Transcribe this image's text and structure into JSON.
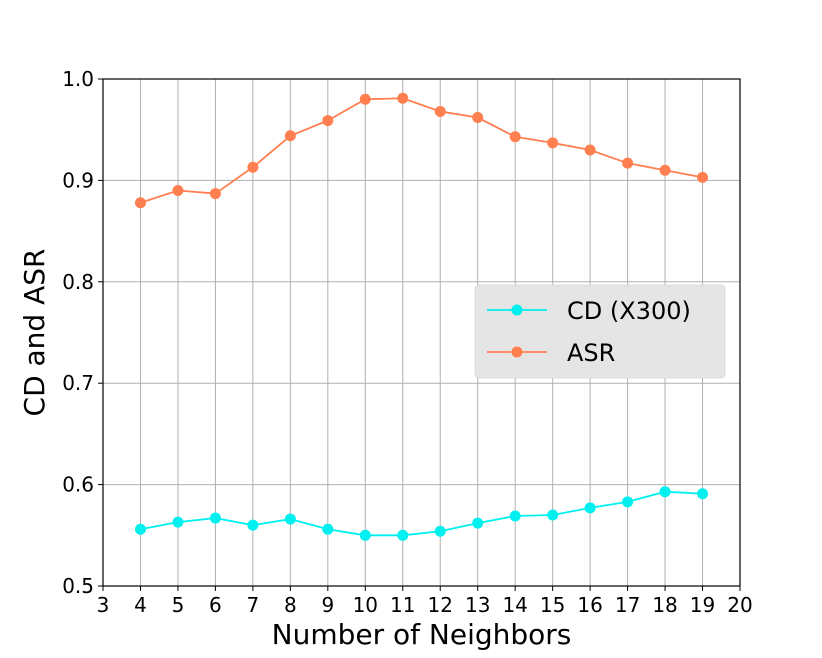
{
  "chart_data": {
    "type": "line",
    "xlabel": "Number of Neighbors",
    "ylabel": "CD and ASR",
    "xlim": [
      3,
      20
    ],
    "ylim": [
      0.5,
      1.0
    ],
    "xticks": [
      "3",
      "4",
      "5",
      "6",
      "7",
      "8",
      "9",
      "10",
      "11",
      "12",
      "13",
      "14",
      "15",
      "16",
      "17",
      "18",
      "19",
      "20"
    ],
    "yticks": [
      "0.5",
      "0.6",
      "0.7",
      "0.8",
      "0.9",
      "1.0"
    ],
    "grid": true,
    "legend_position": "center-right",
    "x": [
      4,
      5,
      6,
      7,
      8,
      9,
      10,
      11,
      12,
      13,
      14,
      15,
      16,
      17,
      18,
      19
    ],
    "series": [
      {
        "name": "CD (X300)",
        "color": "#00f0f0",
        "values": [
          0.556,
          0.563,
          0.567,
          0.56,
          0.566,
          0.556,
          0.55,
          0.55,
          0.554,
          0.562,
          0.569,
          0.57,
          0.577,
          0.583,
          0.593,
          0.591
        ]
      },
      {
        "name": "ASR",
        "color": "#ff7f50",
        "values": [
          0.878,
          0.89,
          0.887,
          0.913,
          0.944,
          0.959,
          0.98,
          0.981,
          0.968,
          0.962,
          0.943,
          0.937,
          0.93,
          0.917,
          0.91,
          0.903
        ]
      }
    ]
  }
}
